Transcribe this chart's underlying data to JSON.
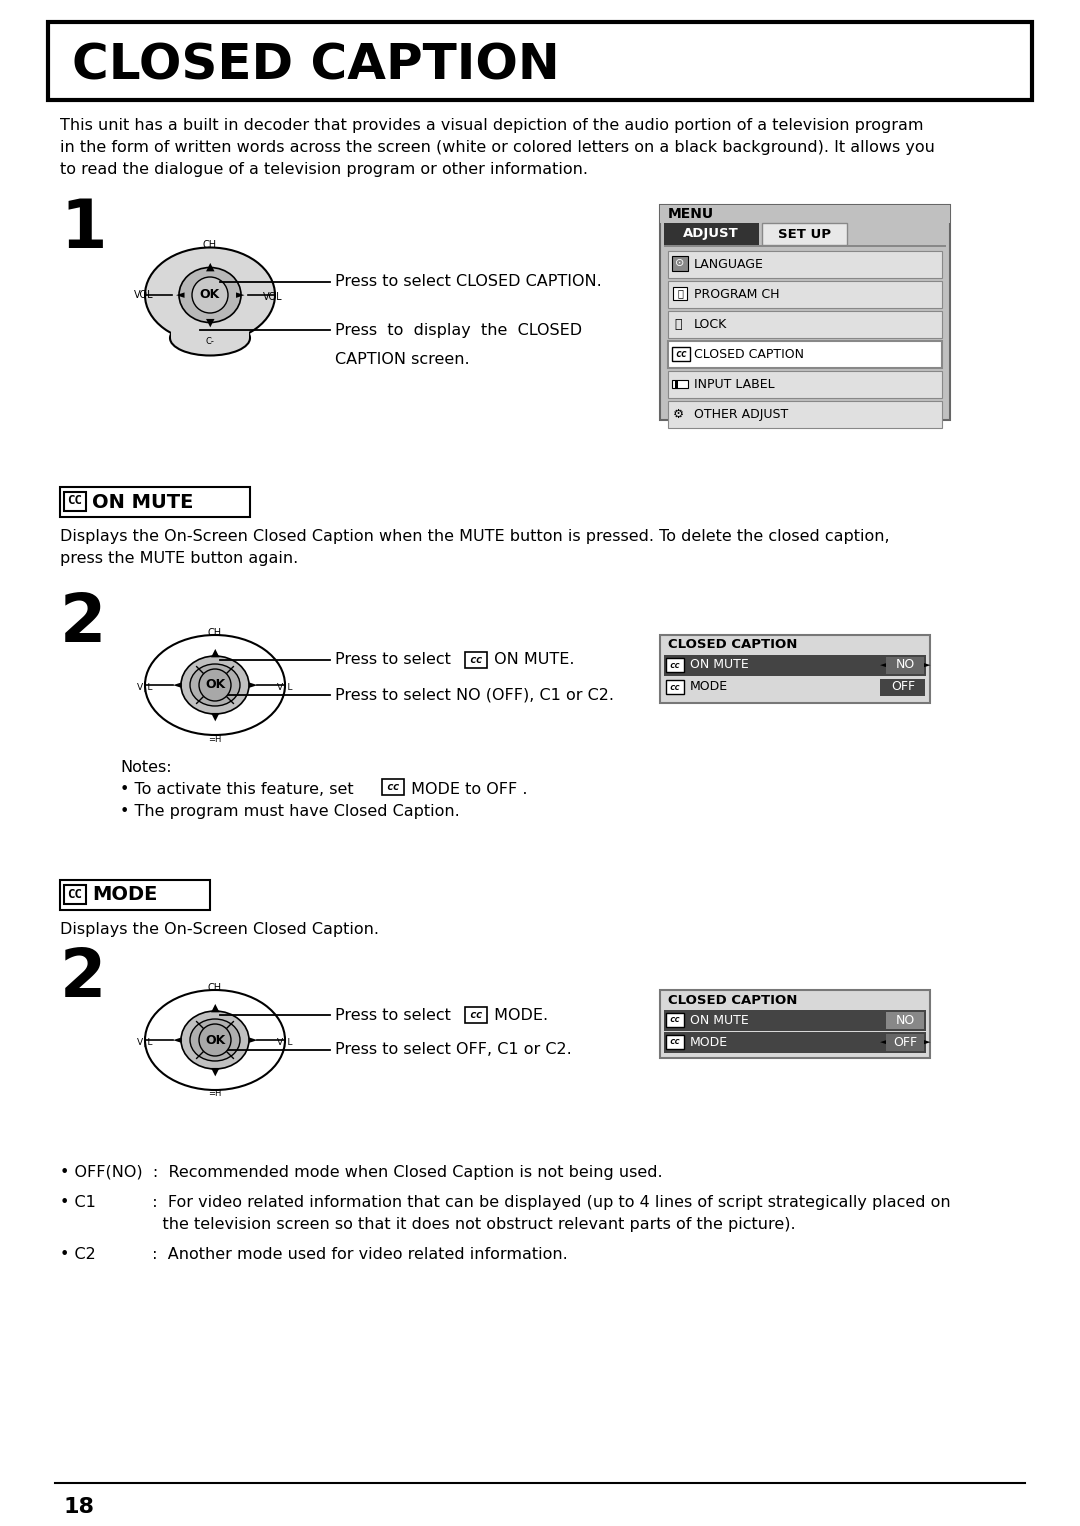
{
  "title": "CLOSED CAPTION",
  "bg_color": "#ffffff",
  "text_color": "#000000",
  "page_number": "18",
  "intro_text": "This unit has a built in decoder that provides a visual depiction of the audio portion of a television program\nin the form of written words across the screen (white or colored letters on a black background). It allows you\nto read the dialogue of a television program or other information.",
  "section1_number": "1",
  "section1_line1": "Press to select CLOSED CAPTION.",
  "section1_line2": "Press to display the CLOSED\nCAPTION screen.",
  "menu_items": [
    "LANGUAGE",
    "PROGRAM CH",
    "LOCK",
    "CLOSED CAPTION",
    "INPUT LABEL",
    "OTHER ADJUST"
  ],
  "menu_adjust_label": "ADJUST",
  "menu_setup_label": "SET UP",
  "menu_title": "MENU",
  "cc_on_mute_header": "ON MUTE",
  "cc_on_mute_desc": "Displays the On-Screen Closed Caption when the MUTE button is pressed. To delete the closed caption,\npress the MUTE button again.",
  "section2_number": "2",
  "section2_line2": "Press to select NO (OFF), C1 or C2.",
  "notes_title": "Notes:",
  "notes_line1": "• To activate this feature, set ",
  "notes_line1b": " MODE to OFF .",
  "notes_line2": "• The program must have Closed Caption.",
  "cc_mode_header": "MODE",
  "cc_mode_desc": "Displays the On-Screen Closed Caption.",
  "section3_number": "2",
  "section3_line2": "Press to select OFF, C1 or C2.",
  "bullet1": "• OFF(NO)  :  Recommended mode when Closed Caption is not being used.",
  "bullet2a": "• C1           :  For video related information that can be displayed (up to 4 lines of script strategically placed on",
  "bullet2b": "                    the television screen so that it does not obstruct relevant parts of the picture).",
  "bullet3": "• C2           :  Another mode used for video related information."
}
